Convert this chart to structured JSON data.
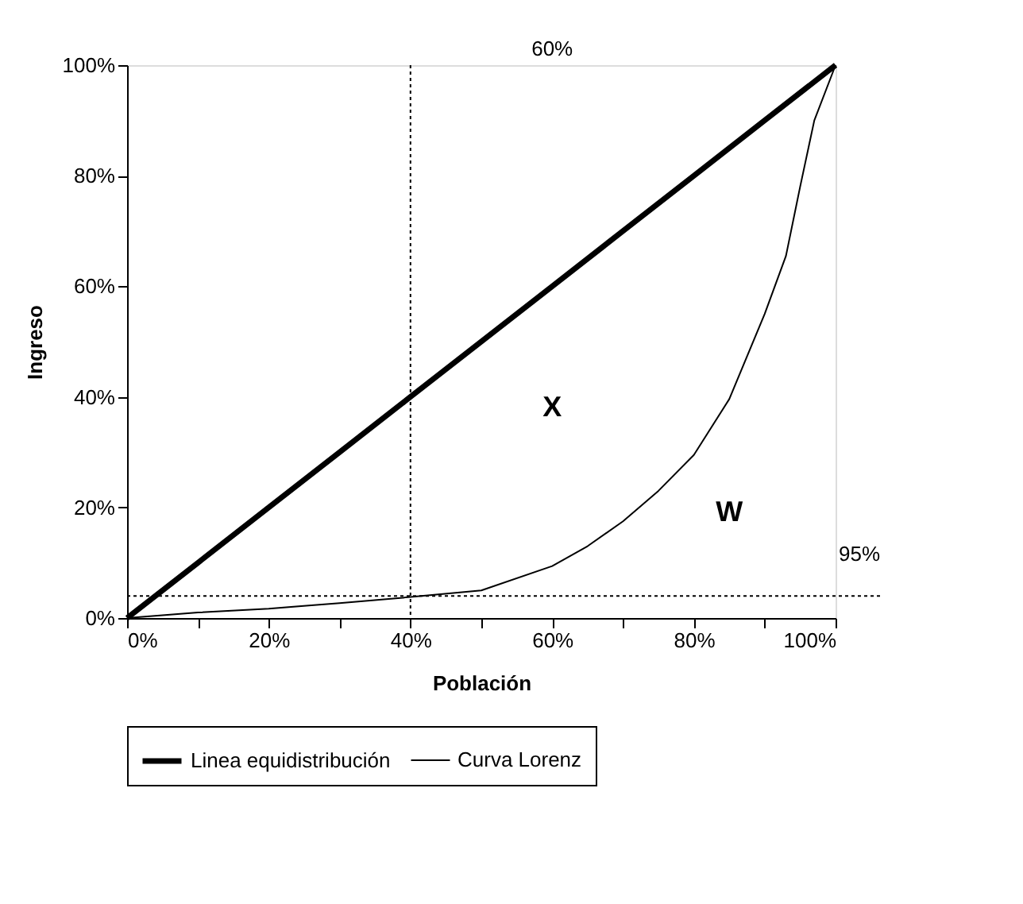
{
  "chart_data": {
    "type": "line",
    "xlabel": "Población",
    "ylabel": "Ingreso",
    "x": [
      0,
      10,
      20,
      30,
      40,
      50,
      60,
      70,
      80,
      90,
      100
    ],
    "series": [
      {
        "name": "Linea equidistribución",
        "color": "#000000",
        "values": [
          0,
          10,
          20,
          30,
          40,
          50,
          60,
          70,
          80,
          90,
          100
        ]
      },
      {
        "name": "Curva Lorenz",
        "color": "#000000",
        "x": [
          0,
          10,
          20,
          30,
          40,
          50,
          60,
          65,
          70,
          75,
          80,
          85,
          90,
          93,
          95,
          97,
          100
        ],
        "values": [
          0,
          1,
          1.7,
          2.7,
          3.8,
          5,
          9.4,
          13,
          17.5,
          23,
          29.5,
          39.6,
          55,
          65.5,
          78,
          90,
          100
        ]
      }
    ],
    "xlim": [
      0,
      100
    ],
    "ylim": [
      0,
      100
    ],
    "xticks": [
      {
        "value": 0,
        "label": "0%"
      },
      {
        "value": 10,
        "label": null
      },
      {
        "value": 20,
        "label": "20%"
      },
      {
        "value": 30,
        "label": null
      },
      {
        "value": 40,
        "label": "40%"
      },
      {
        "value": 50,
        "label": null
      },
      {
        "value": 60,
        "label": "60%"
      },
      {
        "value": 70,
        "label": null
      },
      {
        "value": 80,
        "label": "80%"
      },
      {
        "value": 90,
        "label": null
      },
      {
        "value": 100,
        "label": "100%"
      }
    ],
    "yticks": [
      {
        "value": 0,
        "label": "0%"
      },
      {
        "value": 20,
        "label": "20%"
      },
      {
        "value": 40,
        "label": "40%"
      },
      {
        "value": 60,
        "label": "60%"
      },
      {
        "value": 80,
        "label": "80%"
      },
      {
        "value": 100,
        "label": "100%"
      }
    ],
    "ref_lines": [
      {
        "axis": "x",
        "value": 40,
        "line_style": "dotted"
      },
      {
        "axis": "y",
        "value": 4,
        "line_style": "dotted"
      }
    ],
    "annotations": [
      "60%",
      "95%",
      "X",
      "W"
    ],
    "grid": false,
    "legend": "bottom",
    "marker": "none",
    "line_style": "solid"
  }
}
